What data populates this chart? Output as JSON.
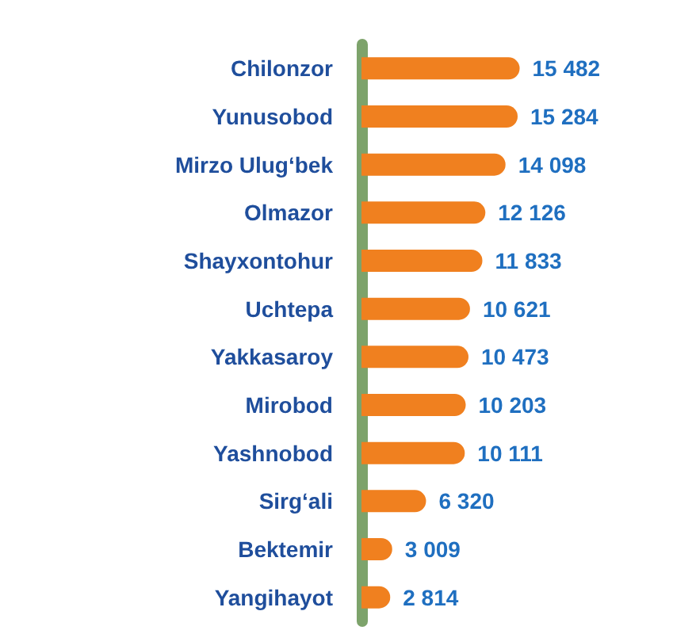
{
  "chart_data": {
    "type": "bar",
    "orientation": "horizontal",
    "categories": [
      "Chilonzor",
      "Yunusobod",
      "Mirzo Ulug‘bek",
      "Olmazor",
      "Shayxontohur",
      "Uchtepa",
      "Yakkasaroy",
      "Mirobod",
      "Yashnobod",
      "Sirg‘ali",
      "Bektemir",
      "Yangihayot"
    ],
    "values": [
      15482,
      15284,
      14098,
      12126,
      11833,
      10621,
      10473,
      10203,
      10111,
      6320,
      3009,
      2814
    ],
    "value_labels": [
      "15 482",
      "15 284",
      "14 098",
      "12 126",
      "11 833",
      "10 621",
      "10 473",
      "10 203",
      "10 111",
      "6 320",
      "3 009",
      "2 814"
    ],
    "color": "#f0801f",
    "grid": false
  }
}
